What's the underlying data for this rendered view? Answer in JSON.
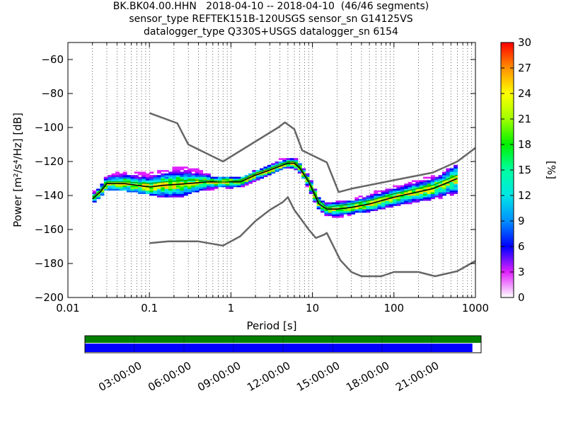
{
  "chart_data": {
    "type": "heatmap",
    "title_lines": [
      "BK.BK04.00.HHN   2018-04-10 -- 2018-04-10  (46/46 segments)",
      "sensor_type REFTEK151B-120USGS sensor_sn G14125VS",
      "datalogger_type Q330S+USGS datalogger_sn 6154"
    ],
    "xlabel": "Period [s]",
    "ylabel": "Power [m²/s⁴/Hz] [dB]",
    "xscale": "log",
    "xlim": [
      0.01,
      1000
    ],
    "ylim": [
      -200,
      -50
    ],
    "xticks": [
      0.01,
      0.1,
      1,
      10,
      100,
      1000
    ],
    "xtick_labels": [
      "0.01",
      "0.1",
      "1",
      "10",
      "100",
      "1000"
    ],
    "yticks": [
      -200,
      -180,
      -160,
      -140,
      -120,
      -100,
      -80,
      -60
    ],
    "ytick_labels": [
      "−200",
      "−180",
      "−160",
      "−140",
      "−120",
      "−100",
      "−80",
      "−60"
    ],
    "grid": "dotted vertical lines",
    "colorbar": {
      "label": "[%]",
      "range": [
        0,
        30
      ],
      "ticks": [
        0,
        3,
        6,
        9,
        12,
        15,
        18,
        21,
        24,
        27,
        30
      ],
      "colormap": "pqlx"
    },
    "noise_model_high": {
      "color": "#666666",
      "x": [
        0.1,
        0.22,
        0.3,
        0.8,
        3.8,
        4.6,
        6,
        7.5,
        15,
        21,
        30,
        100,
        300,
        600,
        1000
      ],
      "y": [
        -91.5,
        -97.5,
        -110,
        -120,
        -100,
        -97,
        -101,
        -113.5,
        -120.5,
        -138,
        -136,
        -131,
        -126.5,
        -120,
        -112
      ]
    },
    "noise_model_low": {
      "color": "#666666",
      "x": [
        0.1,
        0.17,
        0.4,
        0.8,
        1.3,
        2,
        3,
        4.3,
        5,
        6,
        9,
        11,
        14,
        15,
        22,
        30,
        40,
        70,
        100,
        200,
        320,
        600,
        1000
      ],
      "y": [
        -168,
        -167,
        -167,
        -169.5,
        -164,
        -155,
        -148.5,
        -144,
        -141,
        -148.5,
        -160,
        -165,
        -163,
        -162,
        -178,
        -185,
        -187.5,
        -187.5,
        -185,
        -185,
        -187.5,
        -184.5,
        -178.5
      ]
    },
    "mode_curve": {
      "color": "#000000",
      "x": [
        0.02,
        0.025,
        0.03,
        0.05,
        0.1,
        0.15,
        0.3,
        0.5,
        0.8,
        1.3,
        2,
        3,
        5,
        6,
        7,
        9,
        12,
        15,
        20,
        30,
        50,
        100,
        300,
        600
      ],
      "y": [
        -142,
        -138,
        -133,
        -133,
        -135,
        -134,
        -133,
        -132,
        -132,
        -132,
        -128,
        -125,
        -121,
        -121,
        -124,
        -132,
        -145,
        -148,
        -148,
        -147,
        -145,
        -141,
        -136,
        -130
      ]
    },
    "mean_curve": {
      "color": "#00a000",
      "x": [
        0.02,
        0.025,
        0.03,
        0.05,
        0.1,
        0.15,
        0.3,
        0.5,
        0.8,
        1.3,
        2,
        3,
        5,
        6,
        7,
        9,
        12,
        15,
        20,
        30,
        50,
        100,
        300,
        600
      ],
      "y": [
        -141,
        -137,
        -132,
        -132,
        -133,
        -132,
        -131,
        -131,
        -132,
        -131,
        -127,
        -124,
        -120,
        -120,
        -123,
        -131,
        -143,
        -147,
        -146,
        -145,
        -143,
        -139,
        -134,
        -128
      ]
    },
    "density_band": {
      "x": [
        0.02,
        0.025,
        0.03,
        0.05,
        0.1,
        0.15,
        0.25,
        0.4,
        0.6,
        1,
        1.5,
        2,
        3,
        4,
        5,
        6,
        7,
        9,
        11,
        13,
        15,
        20,
        30,
        50,
        100,
        200,
        400,
        600
      ],
      "y_low": [
        -144,
        -141,
        -136,
        -137,
        -139,
        -141,
        -140,
        -137,
        -136,
        -136,
        -135,
        -131,
        -128,
        -125,
        -123,
        -124,
        -127,
        -136,
        -146,
        -150,
        -152,
        -153,
        -151,
        -149,
        -146,
        -143,
        -141,
        -140
      ],
      "y_high": [
        -139,
        -134,
        -127,
        -126,
        -127,
        -125,
        -123,
        -125,
        -129,
        -129,
        -129,
        -125,
        -122,
        -119,
        -118,
        -118,
        -121,
        -129,
        -138,
        -143,
        -145,
        -144,
        -143,
        -139,
        -135,
        -131,
        -127,
        -121
      ]
    },
    "time_coverage": {
      "tick_labels": [
        "03:00:00",
        "06:00:00",
        "09:00:00",
        "12:00:00",
        "15:00:00",
        "18:00:00",
        "21:00:00"
      ],
      "available_color": "#008000",
      "used_color": "#0000ff",
      "used_fraction": 0.978
    }
  }
}
